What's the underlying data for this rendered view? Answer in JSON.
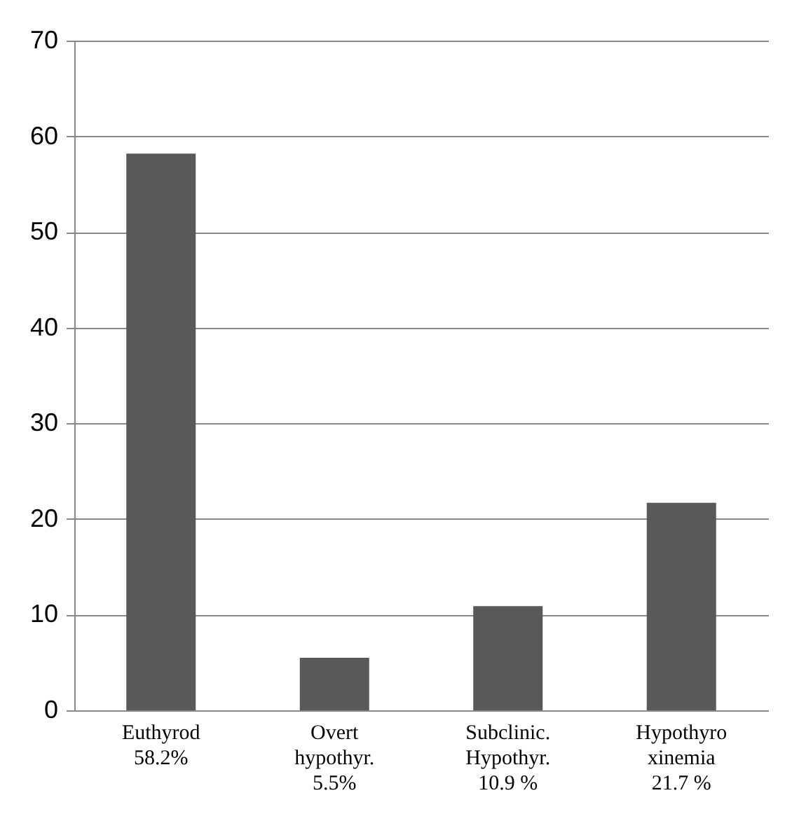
{
  "chart_data": {
    "type": "bar",
    "categories": [
      "Euthyrod\n58.2%",
      "Overt\nhypothyr.\n5.5%",
      "Subclinic.\nHypothyr.\n10.9 %",
      "Hypothyro\nxinemia\n21.7 %"
    ],
    "values": [
      58.2,
      5.5,
      10.9,
      21.7
    ],
    "color": "#595959",
    "ylim": [
      0,
      70
    ],
    "yticks": [
      0,
      10,
      20,
      30,
      40,
      50,
      60,
      70
    ],
    "grid": "y"
  }
}
